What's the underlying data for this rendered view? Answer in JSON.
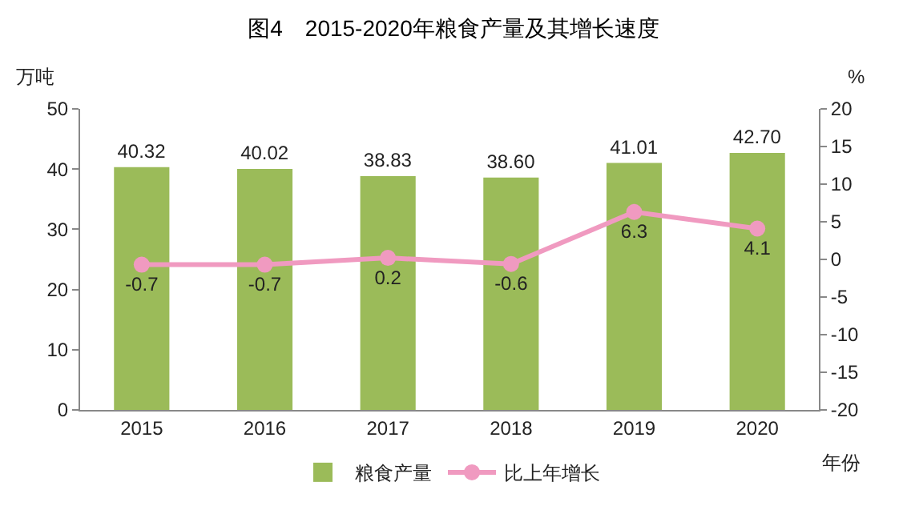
{
  "chart_data": {
    "type": "bar",
    "title": "图4　2015-2020年粮食产量及其增长速度",
    "ylabel": "万吨",
    "y2label": "%",
    "xlabel": "年份",
    "categories": [
      "2015",
      "2016",
      "2017",
      "2018",
      "2019",
      "2020"
    ],
    "series": [
      {
        "name": "粮食产量",
        "color": "#9bbb59",
        "values": [
          40.32,
          40.02,
          38.83,
          38.6,
          41.01,
          42.7
        ],
        "value_labels": [
          "40.32",
          "40.02",
          "38.83",
          "38.60",
          "41.01",
          "42.70"
        ]
      },
      {
        "name": "比上年增长",
        "type": "line",
        "axis": "y2",
        "color": "#f09ac0",
        "values": [
          -0.7,
          -0.7,
          0.2,
          -0.6,
          6.3,
          4.1
        ],
        "value_labels": [
          "-0.7",
          "-0.7",
          "0.2",
          "-0.6",
          "6.3",
          "4.1"
        ]
      }
    ],
    "ylim": [
      0,
      50
    ],
    "yticks": [
      0,
      10,
      20,
      30,
      40,
      50
    ],
    "y2lim": [
      -20,
      20
    ],
    "y2ticks": [
      -20,
      -15,
      -10,
      -5,
      0,
      5,
      10,
      15,
      20
    ],
    "grid": false,
    "legend": "bottom",
    "marker": "circle",
    "line_style": "solid"
  }
}
